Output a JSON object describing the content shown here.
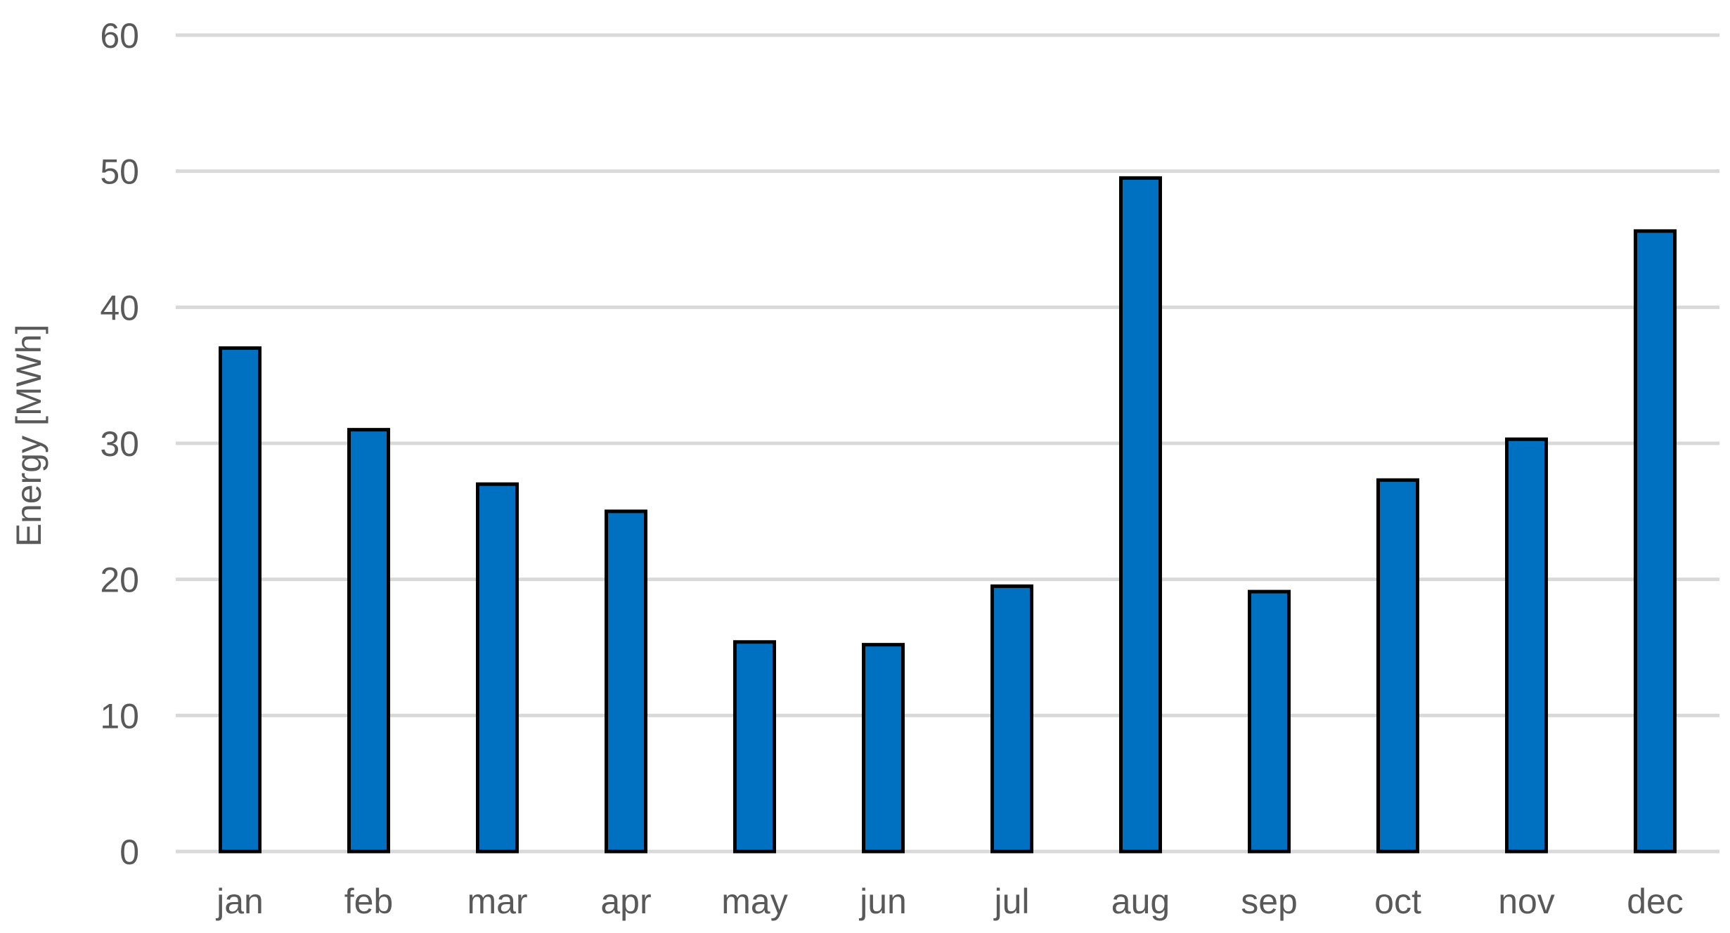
{
  "chart_data": {
    "type": "bar",
    "title": "",
    "xlabel": "",
    "ylabel": "Energy [MWh]",
    "categories": [
      "jan",
      "feb",
      "mar",
      "apr",
      "may",
      "jun",
      "jul",
      "aug",
      "sep",
      "oct",
      "nov",
      "dec"
    ],
    "series": [
      {
        "values": [
          37.0,
          31.0,
          27.0,
          25.0,
          15.4,
          15.2,
          19.5,
          49.5,
          19.1,
          27.3,
          30.3,
          45.6
        ],
        "color": "#0070c0"
      }
    ],
    "ylim": [
      0,
      60
    ],
    "yticks": [
      0,
      10,
      20,
      30,
      40,
      50,
      60
    ],
    "grid": true,
    "legend": "none"
  }
}
